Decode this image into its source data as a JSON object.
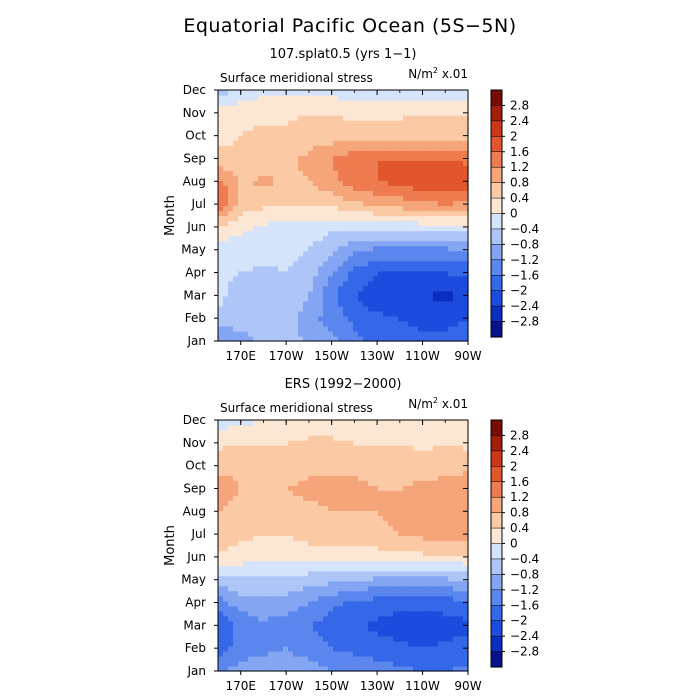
{
  "figure": {
    "title": "Equatorial Pacific Ocean (5S−5N)"
  },
  "chart_data": [
    {
      "type": "heatmap",
      "title": "107.splat0.5 (yrs 1−1)",
      "subtitle": "Surface meridional stress",
      "units": "N/m² x.01",
      "ylabel": "Month",
      "y_ticks": [
        "Jan",
        "Feb",
        "Mar",
        "Apr",
        "May",
        "Jun",
        "Jul",
        "Aug",
        "Sep",
        "Oct",
        "Nov",
        "Dec"
      ],
      "x_ticks": [
        "170E",
        "170W",
        "150W",
        "130W",
        "110W",
        "90W"
      ],
      "x_columns": [
        "160E",
        "170E",
        "180",
        "170W",
        "160W",
        "150W",
        "140W",
        "130W",
        "120W",
        "110W",
        "100W",
        "90W"
      ],
      "values": [
        [
          -1.3,
          -1.0,
          -0.6,
          -0.6,
          -0.9,
          -1.1,
          -1.5,
          -1.7,
          -1.8,
          -1.9,
          -1.9,
          -1.8
        ],
        [
          -0.5,
          -0.6,
          -0.6,
          -0.6,
          -1.0,
          -1.4,
          -1.7,
          -1.9,
          -2.0,
          -2.1,
          -2.1,
          -2.0
        ],
        [
          -0.3,
          -0.6,
          -0.5,
          -0.4,
          -0.8,
          -1.5,
          -2.0,
          -2.3,
          -2.3,
          -2.4,
          -2.5,
          -2.3
        ],
        [
          -0.3,
          -0.4,
          -0.5,
          -0.4,
          -0.6,
          -1.2,
          -1.7,
          -2.0,
          -2.0,
          -2.0,
          -2.0,
          -1.9
        ],
        [
          -0.2,
          -0.2,
          -0.2,
          -0.3,
          -0.4,
          -0.7,
          -1.1,
          -1.3,
          -1.3,
          -1.3,
          -1.3,
          -1.2
        ],
        [
          0.3,
          0.1,
          -0.1,
          -0.1,
          -0.2,
          -0.3,
          -0.3,
          -0.3,
          -0.3,
          -0.2,
          -0.2,
          -0.1
        ],
        [
          1.7,
          0.6,
          0.5,
          0.4,
          0.5,
          0.5,
          0.7,
          0.9,
          1.0,
          1.1,
          1.2,
          1.1
        ],
        [
          1.4,
          0.7,
          0.9,
          0.7,
          0.8,
          1.1,
          1.4,
          1.6,
          1.7,
          1.9,
          2.0,
          1.9
        ],
        [
          0.5,
          0.5,
          0.6,
          0.7,
          0.9,
          1.2,
          1.5,
          1.6,
          1.6,
          1.6,
          1.6,
          1.5
        ],
        [
          0.3,
          0.4,
          0.5,
          0.5,
          0.6,
          0.6,
          0.6,
          0.6,
          0.7,
          0.7,
          0.6,
          0.6
        ],
        [
          0.3,
          0.3,
          0.3,
          0.3,
          0.4,
          0.4,
          0.3,
          0.3,
          0.3,
          0.4,
          0.4,
          0.4
        ],
        [
          -0.6,
          -0.3,
          -0.1,
          -0.1,
          -0.1,
          -0.1,
          -0.3,
          -0.2,
          -0.2,
          -0.2,
          -0.3,
          -0.3
        ]
      ]
    },
    {
      "type": "heatmap",
      "title": "ERS (1992−2000)",
      "subtitle": "Surface meridional stress",
      "units": "N/m² x.01",
      "ylabel": "Month",
      "y_ticks": [
        "Jan",
        "Feb",
        "Mar",
        "Apr",
        "May",
        "Jun",
        "Jul",
        "Aug",
        "Sep",
        "Oct",
        "Nov",
        "Dec"
      ],
      "x_ticks": [
        "170E",
        "170W",
        "150W",
        "130W",
        "110W",
        "90W"
      ],
      "x_columns": [
        "160E",
        "170E",
        "180",
        "170W",
        "160W",
        "150W",
        "140W",
        "130W",
        "120W",
        "110W",
        "100W",
        "90W"
      ],
      "values": [
        [
          -1.3,
          -1.0,
          -1.0,
          -0.9,
          -1.0,
          -1.2,
          -1.3,
          -1.4,
          -1.5,
          -1.6,
          -1.6,
          -1.5
        ],
        [
          -1.8,
          -1.4,
          -1.3,
          -1.2,
          -1.4,
          -1.6,
          -1.7,
          -1.8,
          -1.9,
          -2.0,
          -1.9,
          -1.8
        ],
        [
          -2.0,
          -1.5,
          -1.3,
          -1.4,
          -1.6,
          -1.8,
          -1.9,
          -2.1,
          -2.2,
          -2.3,
          -2.2,
          -2.1
        ],
        [
          -1.4,
          -1.0,
          -0.9,
          -1.0,
          -1.2,
          -1.5,
          -1.7,
          -1.8,
          -1.9,
          -1.9,
          -1.8,
          -1.7
        ],
        [
          -0.6,
          -0.5,
          -0.5,
          -0.5,
          -0.6,
          -0.7,
          -0.8,
          -0.9,
          -0.9,
          -0.9,
          -0.9,
          -0.8
        ],
        [
          0.3,
          0.2,
          0.1,
          0.1,
          0.1,
          0.1,
          0.2,
          0.2,
          0.2,
          0.3,
          0.3,
          0.3
        ],
        [
          0.7,
          0.5,
          0.4,
          0.4,
          0.6,
          0.7,
          0.7,
          0.7,
          0.8,
          0.9,
          1.1,
          1.1
        ],
        [
          0.8,
          0.7,
          0.6,
          0.7,
          0.7,
          0.8,
          0.8,
          0.8,
          0.9,
          1.0,
          1.2,
          1.2
        ],
        [
          1.0,
          0.8,
          0.8,
          0.8,
          0.9,
          0.9,
          0.9,
          0.8,
          0.8,
          0.9,
          1.0,
          1.1
        ],
        [
          0.7,
          0.7,
          0.7,
          0.6,
          0.7,
          0.7,
          0.7,
          0.6,
          0.6,
          0.6,
          0.6,
          0.7
        ],
        [
          0.3,
          0.4,
          0.4,
          0.4,
          0.5,
          0.5,
          0.4,
          0.4,
          0.4,
          0.3,
          0.4,
          0.3
        ],
        [
          -0.2,
          -0.1,
          0.0,
          0.1,
          0.1,
          0.1,
          0.1,
          0.1,
          0.0,
          0.0,
          0.1,
          0.0
        ]
      ]
    }
  ],
  "colorbar": {
    "labels": [
      "2.8",
      "2.4",
      "2",
      "1.6",
      "1.2",
      "0.8",
      "0.4",
      "0",
      "−0.4",
      "−0.8",
      "−1.2",
      "−1.6",
      "−2",
      "−2.4",
      "−2.8"
    ],
    "levels": [
      -2.8,
      -2.4,
      -2.0,
      -1.6,
      -1.2,
      -0.8,
      -0.4,
      0,
      0.4,
      0.8,
      1.2,
      1.6,
      2.0,
      2.4,
      2.8
    ],
    "colors": [
      "#08108c",
      "#0a2fc0",
      "#1c4bde",
      "#3568e8",
      "#5a86ee",
      "#84a6f2",
      "#aec6f7",
      "#d6e4fb",
      "#fbe7d3",
      "#fbc9a4",
      "#f6a57a",
      "#ef7c50",
      "#e2562e",
      "#cc3717",
      "#a41f0b",
      "#7a0d03"
    ]
  }
}
